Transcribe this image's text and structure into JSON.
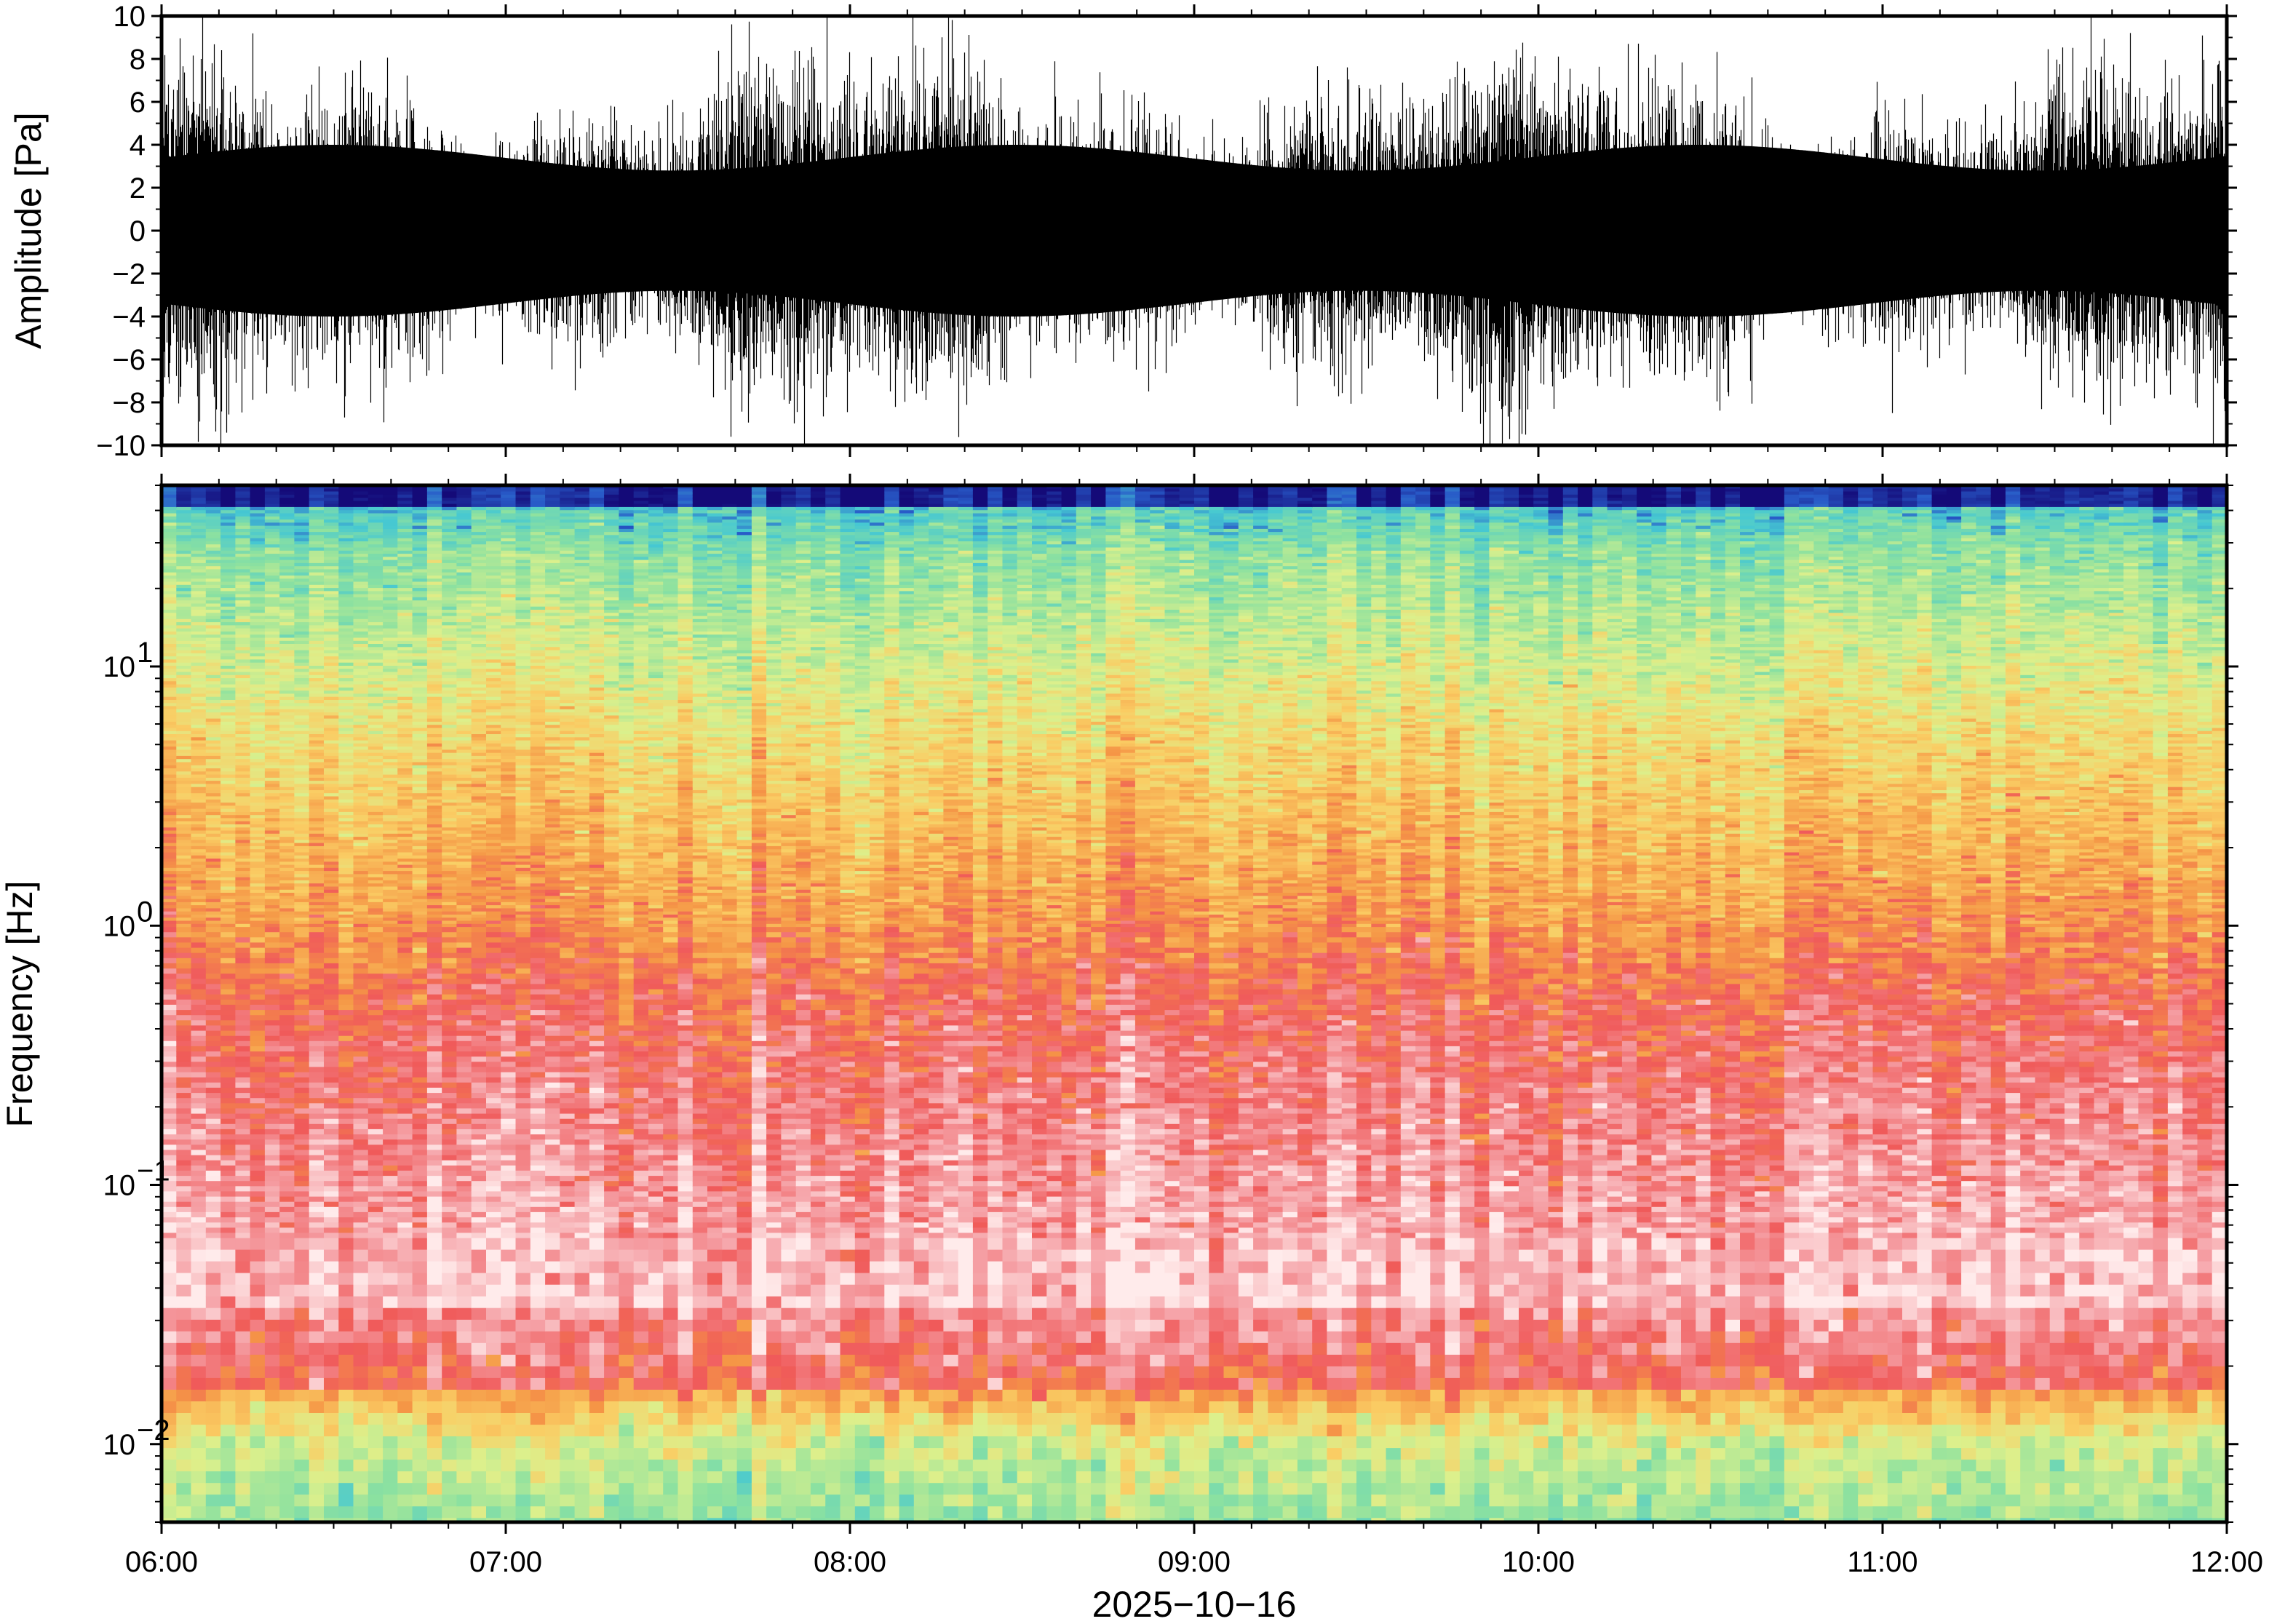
{
  "chart_data": [
    {
      "type": "line",
      "panel": "waveform",
      "ylabel": "Amplitude [Pa]",
      "ylim": [
        -10,
        10
      ],
      "yticks": [
        10,
        8,
        6,
        4,
        2,
        0,
        -2,
        -4,
        -6,
        -8,
        -10
      ],
      "ytick_labels": [
        "10",
        "8",
        "6",
        "4",
        "2",
        "0",
        "−2",
        "−4",
        "−6",
        "−8",
        "−10"
      ],
      "xlim": [
        "06:00",
        "12:00"
      ],
      "grid": false,
      "line_color": "#000000",
      "series_description_values": {
        "typical_envelope_pa": 4,
        "peak_pa": 10
      }
    },
    {
      "type": "heatmap",
      "panel": "spectrogram",
      "ylabel": "Frequency [Hz]",
      "yscale": "log",
      "ylim_hz": [
        0.005,
        50
      ],
      "yticks_hz": [
        10,
        1,
        0.1,
        0.01
      ],
      "ytick_labels": [
        {
          "base": "10",
          "exp": "1"
        },
        {
          "base": "10",
          "exp": "0"
        },
        {
          "base": "10",
          "exp": "−1"
        },
        {
          "base": "10",
          "exp": "−2"
        }
      ],
      "x": [
        "06:00",
        "07:00",
        "08:00",
        "09:00",
        "10:00",
        "11:00",
        "12:00"
      ],
      "xlabel": "2025−10−16",
      "colormap": "spectral",
      "grid": false
    }
  ]
}
